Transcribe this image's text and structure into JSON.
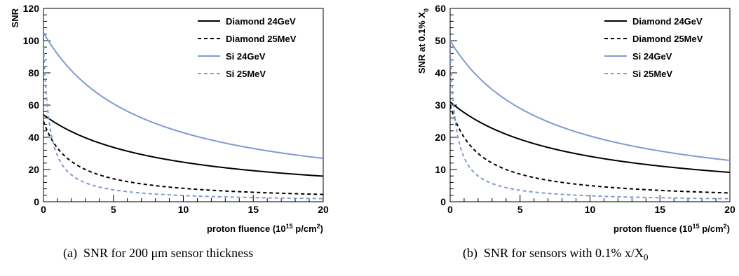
{
  "chart_data": [
    {
      "type": "line",
      "panel_label": "(a)",
      "caption": "SNR for 200 μm sensor thickness",
      "xlabel": "proton fluence (10^15 p/cm^2)",
      "xlabel_parts": {
        "main": "proton fluence (10",
        "sup1": "15",
        "mid": " p/cm",
        "sup2": "2",
        "end": ")"
      },
      "ylabel": "SNR",
      "ylabel_parts": {
        "main": "SNR"
      },
      "xlim": [
        0,
        20
      ],
      "ylim": [
        0,
        120
      ],
      "xticks": [
        0,
        5,
        10,
        15,
        20
      ],
      "yticks": [
        0,
        20,
        40,
        60,
        80,
        100,
        120
      ],
      "legend_position": "top-right",
      "series": [
        {
          "name": "Diamond 24GeV",
          "color": "#000000",
          "dash": "solid",
          "model": {
            "a": 54,
            "k": 0.12
          }
        },
        {
          "name": "Diamond 25MeV",
          "color": "#000000",
          "dash": "dashed",
          "model": {
            "a": 50,
            "k": 0.5
          }
        },
        {
          "name": "Si 24GeV",
          "color": "#7f9bd3",
          "dash": "solid",
          "model": {
            "a": 105,
            "k": 0.145
          }
        },
        {
          "name": "Si 25MeV",
          "color": "#7f9bd3",
          "dash": "dashed",
          "model": {
            "a": 100,
            "k": 2.5
          }
        }
      ]
    },
    {
      "type": "line",
      "panel_label": "(b)",
      "caption": "SNR for sensors with 0.1% x/X",
      "caption_sub": "0",
      "xlabel": "proton fluence (10^15 p/cm^2)",
      "xlabel_parts": {
        "main": "proton fluence (10",
        "sup1": "15",
        "mid": " p/cm",
        "sup2": "2",
        "end": ")"
      },
      "ylabel": "SNR at 0.1% X_0",
      "ylabel_parts": {
        "main": "SNR at 0.1% X",
        "sub": "0"
      },
      "xlim": [
        0,
        20
      ],
      "ylim": [
        0,
        60
      ],
      "xticks": [
        0,
        5,
        10,
        15,
        20
      ],
      "yticks": [
        0,
        10,
        20,
        30,
        40,
        50,
        60
      ],
      "legend_position": "top-right",
      "series": [
        {
          "name": "Diamond 24GeV",
          "color": "#000000",
          "dash": "solid",
          "model": {
            "a": 31,
            "k": 0.12
          }
        },
        {
          "name": "Diamond 25MeV",
          "color": "#000000",
          "dash": "dashed",
          "model": {
            "a": 30,
            "k": 0.5
          }
        },
        {
          "name": "Si 24GeV",
          "color": "#7f9bd3",
          "dash": "solid",
          "model": {
            "a": 50,
            "k": 0.145
          }
        },
        {
          "name": "Si 25MeV",
          "color": "#7f9bd3",
          "dash": "dashed",
          "model": {
            "a": 48,
            "k": 2.5
          }
        }
      ]
    }
  ]
}
